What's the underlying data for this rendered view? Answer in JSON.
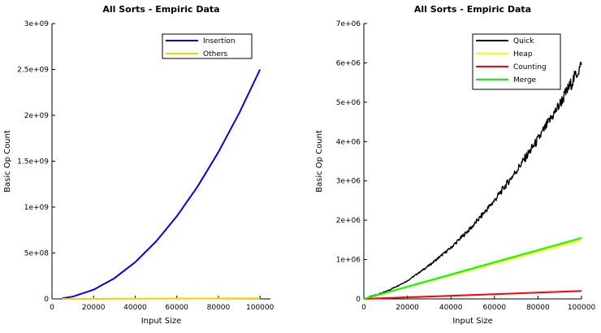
{
  "chart_data": [
    {
      "type": "line",
      "title": "All Sorts - Empiric Data",
      "xlabel": "Input Size",
      "ylabel": "Basic Op Count",
      "xlim": [
        0,
        105000
      ],
      "ylim": [
        0,
        3000000000
      ],
      "xticks": [
        0,
        20000,
        40000,
        60000,
        80000,
        100000
      ],
      "xtick_labels": [
        "0",
        "20000",
        "40000",
        "60000",
        "80000",
        "100000"
      ],
      "yticks": [
        0,
        500000000,
        1000000000,
        1500000000,
        2000000000,
        2500000000,
        3000000000
      ],
      "ytick_labels": [
        "0",
        "5e+08",
        "1e+09",
        "1.5e+09",
        "2e+09",
        "2.5e+09",
        "3e+09"
      ],
      "grid": false,
      "legend_position": "top-right",
      "series": [
        {
          "name": "Insertion",
          "color": "#0000ff",
          "x": [
            5000,
            10000,
            20000,
            30000,
            40000,
            50000,
            60000,
            70000,
            80000,
            90000,
            100000
          ],
          "y": [
            6250000,
            25000000,
            100000000,
            225000000,
            400000000,
            625000000,
            900000000,
            1225000000,
            1600000000,
            2025000000,
            2500000000
          ]
        },
        {
          "name": "Others",
          "color": "#ffcc00",
          "x": [
            5000,
            100000
          ],
          "y": [
            0,
            6000000
          ]
        }
      ]
    },
    {
      "type": "line",
      "title": "All Sorts - Empiric Data",
      "xlabel": "Input Size",
      "ylabel": "Basic Op Count",
      "xlim": [
        0,
        100000
      ],
      "ylim": [
        0,
        7000000
      ],
      "xticks": [
        0,
        20000,
        40000,
        60000,
        80000,
        100000
      ],
      "xtick_labels": [
        "0",
        "20000",
        "40000",
        "60000",
        "80000",
        "100000"
      ],
      "yticks": [
        0,
        1000000,
        2000000,
        3000000,
        4000000,
        5000000,
        6000000,
        7000000
      ],
      "ytick_labels": [
        "0",
        "1e+06",
        "2e+06",
        "3e+06",
        "4e+06",
        "5e+06",
        "6e+06",
        "7e+06"
      ],
      "grid": false,
      "legend_position": "top-right",
      "series": [
        {
          "name": "Quick",
          "color": "#000000",
          "x": [
            0,
            10000,
            20000,
            30000,
            40000,
            50000,
            60000,
            70000,
            80000,
            90000,
            100000
          ],
          "y": [
            0,
            180000,
            460000,
            850000,
            1300000,
            1850000,
            2500000,
            3250000,
            4050000,
            4950000,
            5950000
          ]
        },
        {
          "name": "Heap",
          "color": "#ffff00",
          "x": [
            0,
            100000
          ],
          "y": [
            0,
            1500000
          ]
        },
        {
          "name": "Counting",
          "color": "#ff0000",
          "x": [
            0,
            100000
          ],
          "y": [
            0,
            200000
          ]
        },
        {
          "name": "Merge",
          "color": "#00ff00",
          "x": [
            0,
            100000
          ],
          "y": [
            0,
            1550000
          ]
        }
      ]
    }
  ]
}
